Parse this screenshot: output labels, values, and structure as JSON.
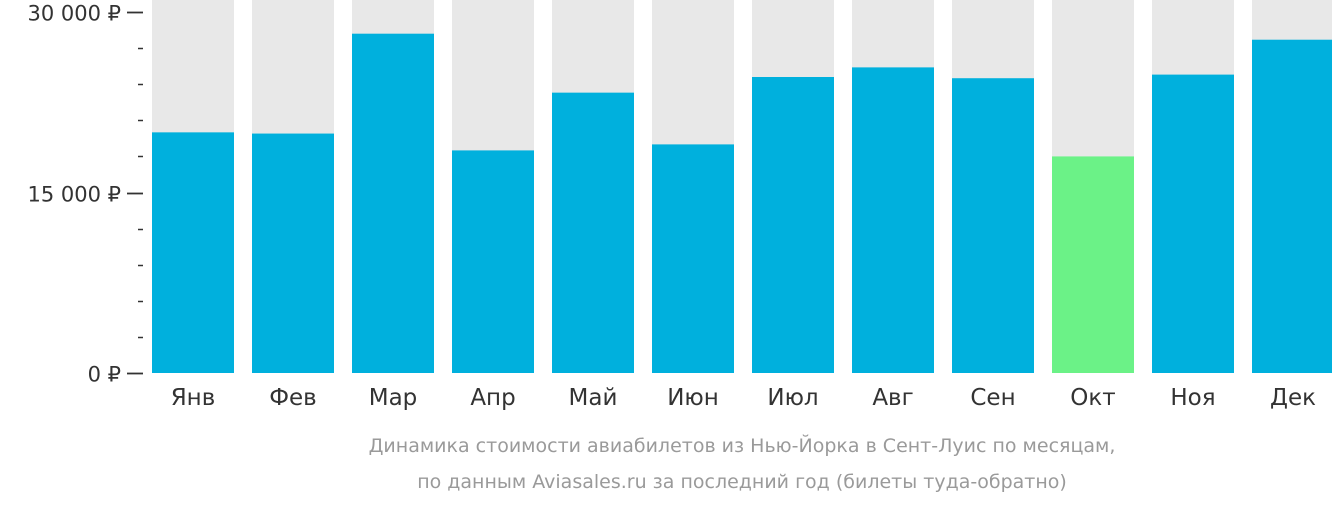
{
  "chart_data": {
    "type": "bar",
    "categories": [
      "Янв",
      "Фев",
      "Мар",
      "Апр",
      "Май",
      "Июн",
      "Июл",
      "Авг",
      "Сен",
      "Окт",
      "Ноя",
      "Дек"
    ],
    "values": [
      20000,
      19900,
      28200,
      18500,
      23300,
      19000,
      24600,
      25400,
      24500,
      18000,
      24800,
      27700
    ],
    "highlight_index": 9,
    "ylim": [
      0,
      31000
    ],
    "y_ticks": [
      0,
      15000,
      30000
    ],
    "y_tick_labels": [
      "0 ₽",
      "15 000 ₽",
      "30 000 ₽"
    ],
    "y_minor_tick_step": 3000,
    "colors": {
      "bar": "#00b0dd",
      "highlight": "#6bf287",
      "background_bar": "#e8e8e8",
      "tick": "#333333",
      "caption": "#9a9a9a"
    },
    "caption_lines": [
      "Динамика стоимости авиабилетов из Нью-Йорка в Сент-Луис по месяцам,",
      "по данным Aviasales.ru за последний год (билеты туда-обратно)"
    ]
  }
}
